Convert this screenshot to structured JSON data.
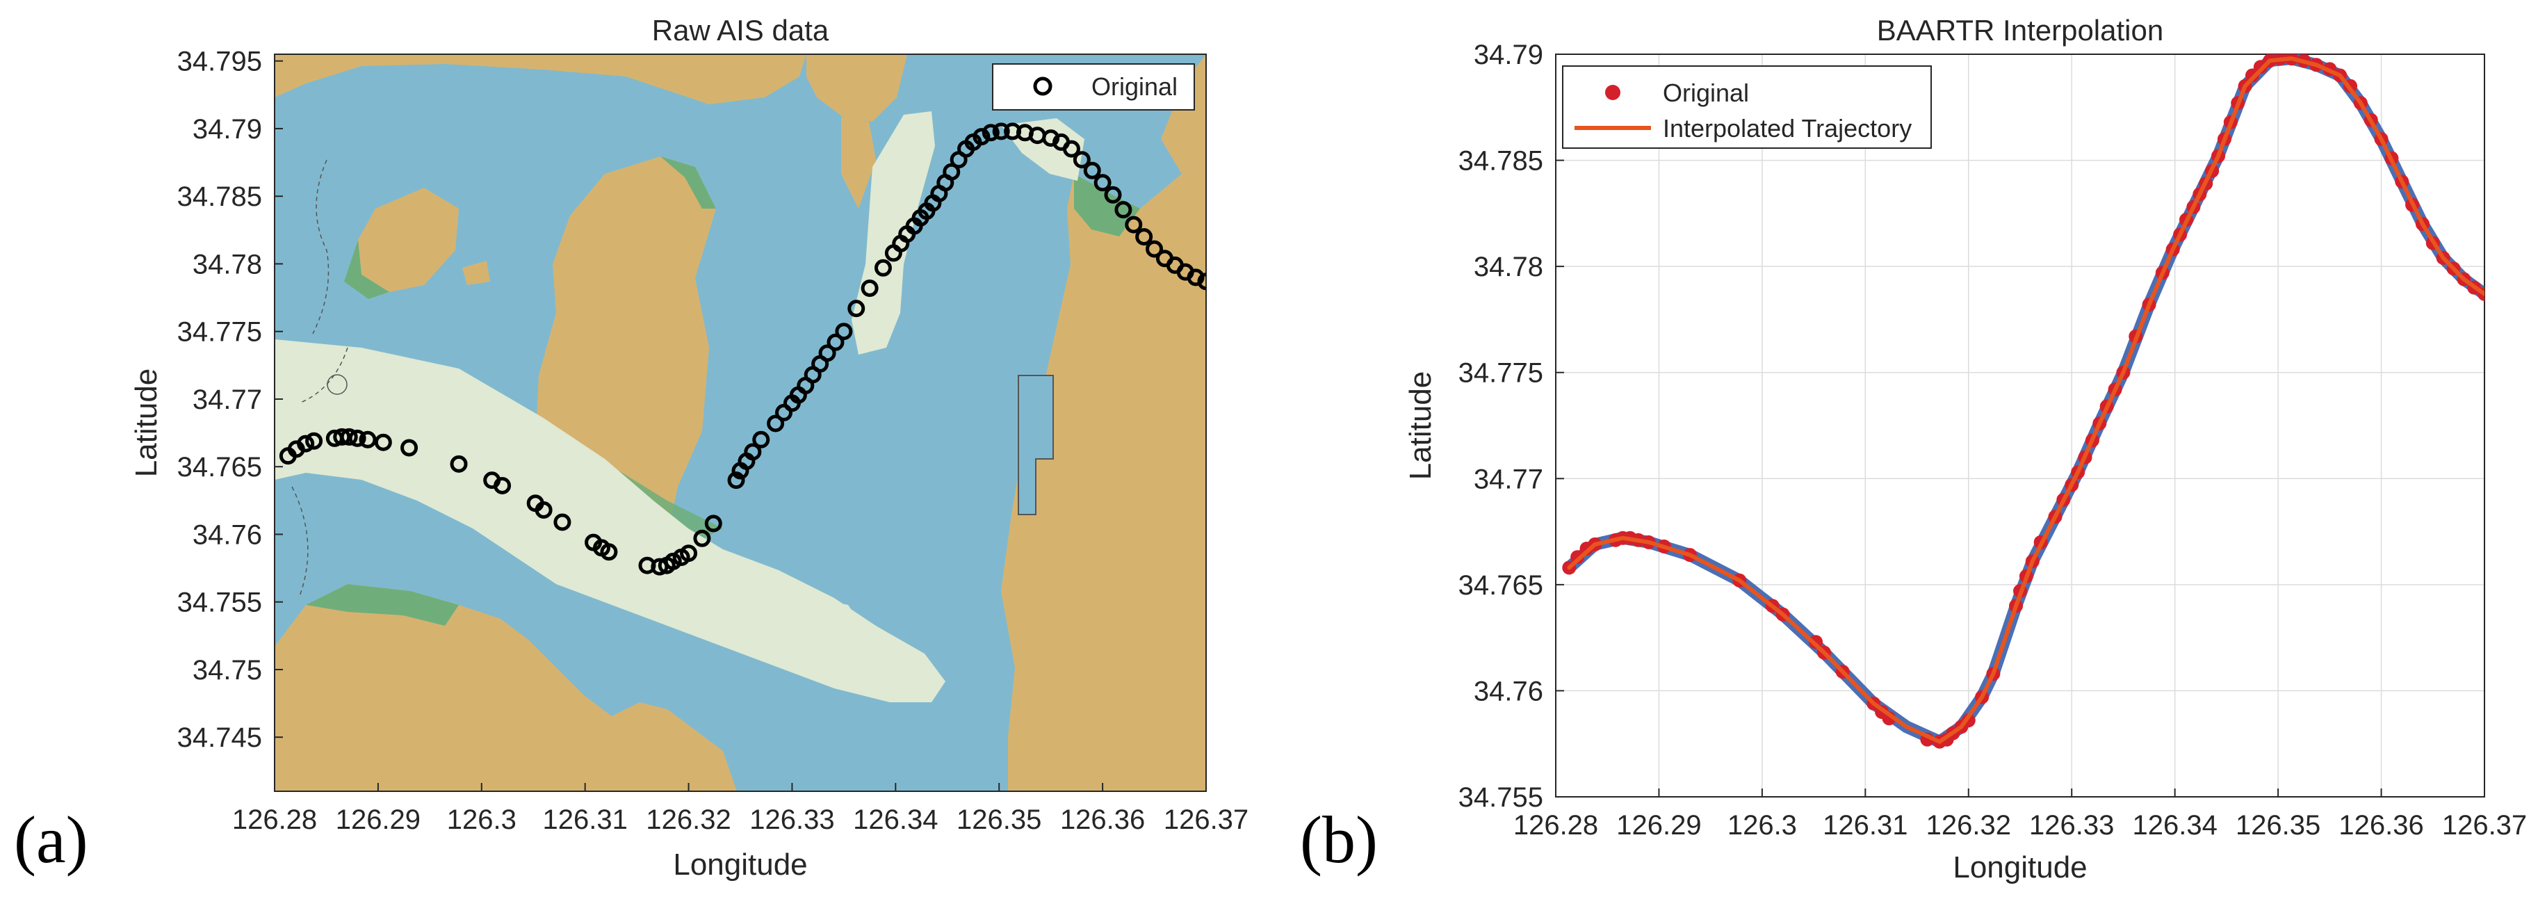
{
  "panel_labels": [
    "(a)",
    "(b)"
  ],
  "chart_data": [
    {
      "type": "scatter",
      "title": "Raw AIS data",
      "xlabel": "Longitude",
      "ylabel": "Latitude",
      "xlim": [
        126.28,
        126.37
      ],
      "ylim": [
        34.741,
        34.7955
      ],
      "xticks": [
        126.28,
        126.29,
        126.3,
        126.31,
        126.32,
        126.33,
        126.34,
        126.35,
        126.36,
        126.37
      ],
      "xtick_labels": [
        "126.28",
        "126.29",
        "126.3",
        "126.31",
        "126.32",
        "126.33",
        "126.34",
        "126.35",
        "126.36",
        "126.37"
      ],
      "yticks": [
        34.745,
        34.75,
        34.755,
        34.76,
        34.765,
        34.77,
        34.775,
        34.78,
        34.785,
        34.79,
        34.795
      ],
      "ytick_labels": [
        "34.745",
        "34.75",
        "34.755",
        "34.76",
        "34.765",
        "34.77",
        "34.775",
        "34.78",
        "34.785",
        "34.79",
        "34.795"
      ],
      "grid": false,
      "background": "chart map (land, shallow water, sea)",
      "legend": {
        "position": "top-right",
        "entries": [
          "Original"
        ]
      },
      "series": [
        {
          "name": "Original",
          "marker": "open-circle",
          "color": "#000000",
          "x": [
            126.2813,
            126.2821,
            126.283,
            126.2838,
            126.2858,
            126.2865,
            126.2872,
            126.288,
            126.289,
            126.2905,
            126.293,
            126.2978,
            126.301,
            126.302,
            126.3052,
            126.306,
            126.3078,
            126.3108,
            126.3116,
            126.3123,
            126.316,
            126.3172,
            126.3179,
            126.3185,
            126.3193,
            126.32,
            126.3213,
            126.3224,
            126.3246,
            126.325,
            126.3256,
            126.3262,
            126.327,
            126.3284,
            126.3292,
            126.33,
            126.3306,
            126.3313,
            126.332,
            126.3327,
            126.3334,
            126.3342,
            126.335,
            126.3362,
            126.3375,
            126.3388,
            126.3398,
            126.3405,
            126.3411,
            126.3418,
            126.3424,
            126.343,
            126.3436,
            126.3442,
            126.3448,
            126.3454,
            126.3461,
            126.3468,
            126.3475,
            126.3483,
            126.3492,
            126.3502,
            126.3513,
            126.3525,
            126.3537,
            126.355,
            126.356,
            126.357,
            126.358,
            126.359,
            126.36,
            126.361,
            126.362,
            126.363,
            126.364,
            126.365,
            126.366,
            126.367,
            126.368,
            126.369,
            126.37
          ],
          "y": [
            34.7658,
            34.7663,
            34.7667,
            34.7669,
            34.7671,
            34.7672,
            34.7672,
            34.7671,
            34.767,
            34.7668,
            34.7664,
            34.7652,
            34.764,
            34.7636,
            34.7623,
            34.7618,
            34.7609,
            34.7594,
            34.759,
            34.7587,
            34.7577,
            34.7576,
            34.7577,
            34.758,
            34.7583,
            34.7586,
            34.7597,
            34.7608,
            34.764,
            34.7647,
            34.7654,
            34.7661,
            34.767,
            34.7682,
            34.769,
            34.7697,
            34.7703,
            34.771,
            34.7718,
            34.7726,
            34.7734,
            34.7742,
            34.775,
            34.7767,
            34.7782,
            34.7797,
            34.7808,
            34.7815,
            34.7822,
            34.7828,
            34.7834,
            34.7839,
            34.7845,
            34.7852,
            34.786,
            34.7868,
            34.7877,
            34.7885,
            34.789,
            34.7894,
            34.7897,
            34.7898,
            34.7898,
            34.7897,
            34.7895,
            34.7893,
            34.789,
            34.7885,
            34.7877,
            34.7869,
            34.786,
            34.7851,
            34.784,
            34.7829,
            34.782,
            34.7811,
            34.7804,
            34.7799,
            34.7794,
            34.779,
            34.7787
          ]
        }
      ]
    },
    {
      "type": "line",
      "title": "BAARTR Interpolation",
      "xlabel": "Longitude",
      "ylabel": "Latitude",
      "xlim": [
        126.28,
        126.37
      ],
      "ylim": [
        34.755,
        34.79
      ],
      "xticks": [
        126.28,
        126.29,
        126.3,
        126.31,
        126.32,
        126.33,
        126.34,
        126.35,
        126.36,
        126.37
      ],
      "xtick_labels": [
        "126.28",
        "126.29",
        "126.3",
        "126.31",
        "126.32",
        "126.33",
        "126.34",
        "126.35",
        "126.36",
        "126.37"
      ],
      "yticks": [
        34.755,
        34.76,
        34.765,
        34.77,
        34.775,
        34.78,
        34.785,
        34.79
      ],
      "ytick_labels": [
        "34.755",
        "34.76",
        "34.765",
        "34.77",
        "34.775",
        "34.78",
        "34.785",
        "34.79"
      ],
      "grid": true,
      "legend": {
        "position": "top-left",
        "entries": [
          "Original",
          "Interpolated Trajectory"
        ]
      },
      "series": [
        {
          "name": "Original",
          "marker": "filled-circle",
          "color": "#d4202a",
          "x": [
            126.2813,
            126.2821,
            126.283,
            126.2838,
            126.2858,
            126.2865,
            126.2872,
            126.288,
            126.289,
            126.2905,
            126.293,
            126.2978,
            126.301,
            126.302,
            126.3052,
            126.306,
            126.3078,
            126.3108,
            126.3116,
            126.3123,
            126.316,
            126.3172,
            126.3179,
            126.3185,
            126.3193,
            126.32,
            126.3213,
            126.3224,
            126.3246,
            126.325,
            126.3256,
            126.3262,
            126.327,
            126.3284,
            126.3292,
            126.33,
            126.3306,
            126.3313,
            126.332,
            126.3327,
            126.3334,
            126.3342,
            126.335,
            126.3362,
            126.3375,
            126.3388,
            126.3398,
            126.3405,
            126.3411,
            126.3418,
            126.3424,
            126.343,
            126.3436,
            126.3442,
            126.3448,
            126.3454,
            126.3461,
            126.3468,
            126.3475,
            126.3483,
            126.3492,
            126.3502,
            126.3513,
            126.3525,
            126.3537,
            126.355,
            126.356,
            126.357,
            126.358,
            126.359,
            126.36,
            126.361,
            126.362,
            126.363,
            126.364,
            126.365,
            126.366,
            126.367,
            126.368,
            126.369,
            126.37
          ],
          "y": [
            34.7658,
            34.7663,
            34.7667,
            34.7669,
            34.7671,
            34.7672,
            34.7672,
            34.7671,
            34.767,
            34.7668,
            34.7664,
            34.7652,
            34.764,
            34.7636,
            34.7623,
            34.7618,
            34.7609,
            34.7594,
            34.759,
            34.7587,
            34.7577,
            34.7576,
            34.7577,
            34.758,
            34.7583,
            34.7586,
            34.7597,
            34.7608,
            34.764,
            34.7647,
            34.7654,
            34.7661,
            34.767,
            34.7682,
            34.769,
            34.7697,
            34.7703,
            34.771,
            34.7718,
            34.7726,
            34.7734,
            34.7742,
            34.775,
            34.7767,
            34.7782,
            34.7797,
            34.7808,
            34.7815,
            34.7822,
            34.7828,
            34.7834,
            34.7839,
            34.7845,
            34.7852,
            34.786,
            34.7868,
            34.7877,
            34.7885,
            34.789,
            34.7894,
            34.7897,
            34.7898,
            34.7898,
            34.7897,
            34.7895,
            34.7893,
            34.789,
            34.7885,
            34.7877,
            34.7869,
            34.786,
            34.7851,
            34.784,
            34.7829,
            34.782,
            34.7811,
            34.7804,
            34.7799,
            34.7794,
            34.779,
            34.7787
          ]
        },
        {
          "name": "Interpolated Trajectory",
          "line": "solid",
          "color": "#e8541e",
          "underlay_color": "#4a6fb5",
          "x": [
            126.2813,
            126.2838,
            126.2865,
            126.289,
            126.293,
            126.2978,
            126.302,
            126.306,
            126.3108,
            126.314,
            126.3172,
            126.3193,
            126.3213,
            126.3224,
            126.3246,
            126.3262,
            126.3284,
            126.3306,
            126.3327,
            126.335,
            126.3375,
            126.3398,
            126.3418,
            126.3442,
            126.3468,
            126.3492,
            126.3513,
            126.3537,
            126.356,
            126.358,
            126.36,
            126.362,
            126.364,
            126.366,
            126.368,
            126.37
          ],
          "y": [
            34.7658,
            34.7669,
            34.7672,
            34.767,
            34.7664,
            34.7652,
            34.7636,
            34.7618,
            34.7594,
            34.7583,
            34.7576,
            34.7583,
            34.7597,
            34.7608,
            34.764,
            34.7661,
            34.7682,
            34.7703,
            34.7726,
            34.775,
            34.7782,
            34.7808,
            34.7828,
            34.7852,
            34.7885,
            34.7897,
            34.7898,
            34.7895,
            34.789,
            34.7877,
            34.786,
            34.784,
            34.782,
            34.7804,
            34.7794,
            34.7787
          ]
        }
      ]
    }
  ]
}
